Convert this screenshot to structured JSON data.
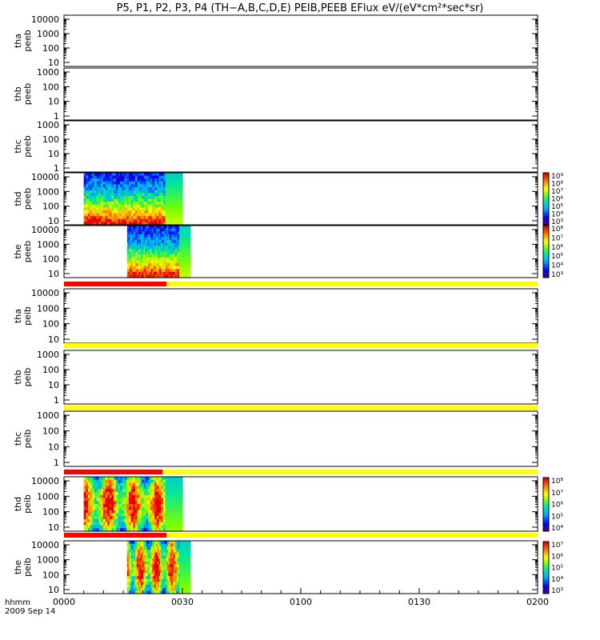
{
  "title": "P5, P1, P2, P3, P4 (TH−A,B,C,D,E) PEIB,PEEB EFlux eV/(eV*cm²*sec*sr)",
  "footer": {
    "hhmm": "hhmm",
    "date": "2009 Sep 14"
  },
  "chart_data": {
    "type": "heatmap",
    "x_ticks": [
      "0000",
      "0030",
      "0100",
      "0130",
      "0200"
    ],
    "x_range_minutes": [
      0,
      120
    ],
    "panels": [
      {
        "probe": "tha",
        "product": "peeb",
        "y_ticks": [
          "10000",
          "1000",
          "100",
          "10"
        ],
        "data": false
      },
      {
        "probe": "thb",
        "product": "peeb",
        "y_ticks": [
          "1000",
          "100",
          "10",
          "1"
        ],
        "data": false
      },
      {
        "probe": "thc",
        "product": "peeb",
        "y_ticks": [
          "1000",
          "100",
          "10",
          "1"
        ],
        "data": false
      },
      {
        "probe": "thd",
        "product": "peeb",
        "y_ticks": [
          "10000",
          "1000",
          "100",
          "10"
        ],
        "data": true,
        "data_start_min": 5,
        "data_end_min": 30,
        "colorbar": [
          "10⁹",
          "10⁸",
          "10⁷",
          "10⁶",
          "10⁵",
          "10⁴",
          "10³"
        ]
      },
      {
        "probe": "the",
        "product": "peeb",
        "y_ticks": [
          "10000",
          "1000",
          "100",
          "10"
        ],
        "data": true,
        "data_start_min": 16,
        "data_end_min": 32,
        "colorbar": [
          "10⁸",
          "10⁷",
          "10⁶",
          "10⁵",
          "10⁴",
          "10³"
        ]
      },
      {
        "probe": "tha",
        "product": "peib",
        "y_ticks": [
          "10000",
          "1000",
          "100",
          "10"
        ],
        "data": false
      },
      {
        "probe": "thb",
        "product": "peib",
        "y_ticks": [
          "1000",
          "100",
          "10",
          "1"
        ],
        "data": false
      },
      {
        "probe": "thc",
        "product": "peib",
        "y_ticks": [
          "1000",
          "100",
          "10",
          "1"
        ],
        "data": false
      },
      {
        "probe": "thd",
        "product": "peib",
        "y_ticks": [
          "10000",
          "1000",
          "100",
          "10"
        ],
        "data": true,
        "data_start_min": 5,
        "data_end_min": 30,
        "colorbar": [
          "10⁸",
          "10⁷",
          "10⁶",
          "10⁵",
          "10⁴"
        ]
      },
      {
        "probe": "the",
        "product": "peib",
        "y_ticks": [
          "10000",
          "1000",
          "100",
          "10"
        ],
        "data": true,
        "data_start_min": 16,
        "data_end_min": 32,
        "colorbar": [
          "10⁷",
          "10⁶",
          "10⁵",
          "10⁴",
          "10³"
        ]
      }
    ],
    "mode_bars": [
      {
        "red_end_min": 26
      },
      {
        "red_end_min": 0
      },
      {
        "red_end_min": 0
      },
      {
        "red_end_min": 25
      },
      {
        "red_end_min": 26
      }
    ],
    "colors": {
      "mode_bar_yellow": "#ffff00",
      "mode_bar_red": "#ff0000"
    }
  }
}
